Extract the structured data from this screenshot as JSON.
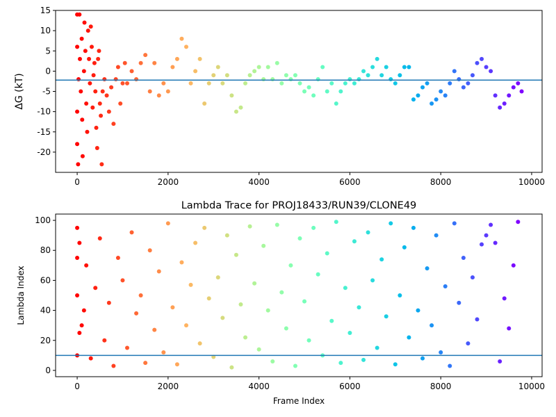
{
  "chart_data": [
    {
      "type": "scatter",
      "ylabel": "ΔG (kT)",
      "colormap": "rainbow_r",
      "hline": -2.2,
      "hline_color": "#1f77b4",
      "xlim": [
        -475,
        10230
      ],
      "ylim": [
        -25,
        15
      ],
      "xticks": [
        0,
        2000,
        4000,
        6000,
        8000,
        10000
      ],
      "yticks": [
        -20,
        -15,
        -10,
        -5,
        0,
        5,
        10,
        15
      ],
      "x": [
        0,
        0,
        0,
        0,
        20,
        30,
        50,
        60,
        80,
        100,
        110,
        120,
        150,
        160,
        180,
        200,
        220,
        240,
        260,
        280,
        300,
        320,
        340,
        360,
        380,
        400,
        420,
        440,
        460,
        480,
        500,
        520,
        540,
        560,
        600,
        650,
        700,
        750,
        800,
        850,
        900,
        950,
        1000,
        1050,
        1100,
        1200,
        1300,
        1400,
        1500,
        1600,
        1700,
        1800,
        1900,
        2000,
        2100,
        2200,
        2300,
        2400,
        2500,
        2600,
        2700,
        2800,
        2900,
        3000,
        3100,
        3200,
        3300,
        3400,
        3500,
        3600,
        3700,
        3800,
        3900,
        4000,
        4100,
        4200,
        4300,
        4400,
        4500,
        4600,
        4700,
        4800,
        4900,
        5000,
        5100,
        5200,
        5300,
        5400,
        5500,
        5600,
        5700,
        5800,
        5900,
        6000,
        6100,
        6200,
        6300,
        6400,
        6500,
        6600,
        6700,
        6800,
        6900,
        7000,
        7100,
        7200,
        7300,
        7400,
        7500,
        7600,
        7700,
        7800,
        7900,
        8000,
        8100,
        8200,
        8300,
        8400,
        8500,
        8600,
        8700,
        8800,
        8900,
        9000,
        9100,
        9200,
        9300,
        9400,
        9500,
        9600,
        9700,
        9780
      ],
      "values": [
        14,
        6,
        -10,
        -18,
        -23,
        -2,
        14,
        3,
        -5,
        8,
        -12,
        -21,
        0,
        12,
        5,
        -8,
        -15,
        10,
        3,
        -3,
        11,
        6,
        -9,
        -1,
        2,
        -5,
        -14,
        -19,
        3,
        5,
        -8,
        -11,
        -23,
        -5,
        -2,
        -6,
        -10,
        -4,
        -13,
        -2,
        1,
        -8,
        -3,
        2,
        -3,
        0,
        -2,
        2,
        4,
        -5,
        2,
        -6,
        -3,
        -5,
        1,
        3,
        8,
        6,
        -3,
        0,
        3,
        -8,
        -3,
        -1,
        1,
        -3,
        -1,
        -6,
        -10,
        -9,
        -3,
        -1,
        0,
        1,
        -2,
        1,
        -2,
        2,
        -3,
        -1,
        -2,
        -1,
        -3,
        -5,
        -4,
        -6,
        -2,
        1,
        -5,
        -3,
        -8,
        -5,
        -3,
        -2,
        -3,
        -2,
        0,
        -1,
        1,
        3,
        -1,
        1,
        -2,
        -3,
        -1,
        1,
        1,
        -7,
        -6,
        -4,
        -3,
        -8,
        -7,
        -5,
        -6,
        -3,
        0,
        -2,
        -4,
        -3,
        -1,
        2,
        3,
        1,
        0,
        -6,
        -9,
        -8,
        -6,
        -4,
        -3,
        -5
      ]
    },
    {
      "type": "scatter",
      "title": "Lambda Trace for PROJ18433/RUN39/CLONE49",
      "xlabel": "Frame Index",
      "ylabel": "Lambda Index",
      "colormap": "rainbow_r",
      "hline": 10,
      "hline_color": "#1f77b4",
      "xlim": [
        -475,
        10230
      ],
      "ylim": [
        -4.2,
        104.2
      ],
      "xticks": [
        0,
        2000,
        4000,
        6000,
        8000,
        10000
      ],
      "yticks": [
        0,
        20,
        40,
        60,
        80,
        100
      ],
      "x": [
        0,
        0,
        0,
        50,
        50,
        150,
        0,
        100,
        200,
        300,
        400,
        500,
        600,
        700,
        800,
        900,
        1000,
        1100,
        1200,
        1300,
        1400,
        1500,
        1600,
        1700,
        1800,
        1900,
        2000,
        2100,
        2200,
        2300,
        2400,
        2500,
        2600,
        2700,
        2800,
        2900,
        3000,
        3100,
        3200,
        3300,
        3400,
        3500,
        3600,
        3700,
        3800,
        3900,
        4000,
        4100,
        4200,
        4300,
        4400,
        4500,
        4600,
        4700,
        4800,
        4900,
        5000,
        5100,
        5200,
        5300,
        5400,
        5500,
        5600,
        5700,
        5800,
        5900,
        6000,
        6100,
        6200,
        6300,
        6400,
        6500,
        6600,
        6700,
        6800,
        6900,
        7000,
        7100,
        7200,
        7300,
        7400,
        7500,
        7600,
        7700,
        7800,
        7900,
        8000,
        8100,
        8200,
        8300,
        8400,
        8500,
        8600,
        8700,
        8800,
        8900,
        9000,
        9100,
        9200,
        9300,
        9400,
        9500,
        9600,
        9700
      ],
      "values": [
        50,
        10,
        75,
        25,
        85,
        40,
        95,
        30,
        70,
        8,
        55,
        88,
        20,
        45,
        3,
        75,
        60,
        15,
        92,
        38,
        50,
        5,
        80,
        27,
        66,
        12,
        98,
        42,
        4,
        72,
        30,
        57,
        85,
        18,
        95,
        48,
        9,
        62,
        35,
        90,
        2,
        77,
        44,
        22,
        96,
        58,
        14,
        83,
        40,
        6,
        97,
        52,
        28,
        70,
        3,
        88,
        46,
        20,
        95,
        64,
        10,
        78,
        33,
        99,
        5,
        55,
        25,
        86,
        42,
        7,
        92,
        60,
        15,
        74,
        36,
        98,
        4,
        50,
        82,
        22,
        95,
        40,
        8,
        68,
        30,
        90,
        12,
        56,
        3,
        98,
        45,
        75,
        18,
        62,
        34,
        84,
        90,
        97,
        85,
        6,
        48,
        28,
        70,
        99
      ]
    }
  ]
}
